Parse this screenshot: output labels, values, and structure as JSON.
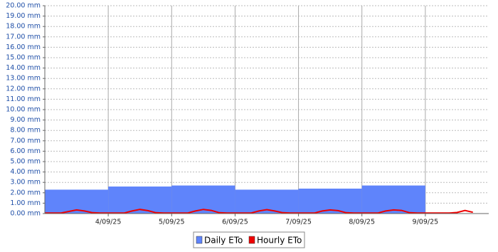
{
  "chart_data": {
    "type": "step-area-line",
    "ylim": [
      0,
      20
    ],
    "yticks": [
      {
        "value": 0,
        "label": "0.00 mm"
      },
      {
        "value": 1,
        "label": "1.00 mm"
      },
      {
        "value": 2,
        "label": "2.00 mm"
      },
      {
        "value": 3,
        "label": "3.00 mm"
      },
      {
        "value": 4,
        "label": "4.00 mm"
      },
      {
        "value": 5,
        "label": "5.00 mm"
      },
      {
        "value": 6,
        "label": "6.00 mm"
      },
      {
        "value": 7,
        "label": "7.00 mm"
      },
      {
        "value": 8,
        "label": "8.00 mm"
      },
      {
        "value": 9,
        "label": "9.00 mm"
      },
      {
        "value": 10,
        "label": "10.00 mm"
      },
      {
        "value": 11,
        "label": "11.00 mm"
      },
      {
        "value": 12,
        "label": "12.00 mm"
      },
      {
        "value": 13,
        "label": "13.00 mm"
      },
      {
        "value": 14,
        "label": "14.00 mm"
      },
      {
        "value": 15,
        "label": "15.00 mm"
      },
      {
        "value": 16,
        "label": "16.00 mm"
      },
      {
        "value": 17,
        "label": "17.00 mm"
      },
      {
        "value": 18,
        "label": "18.00 mm"
      },
      {
        "value": 19,
        "label": "19.00 mm"
      },
      {
        "value": 20,
        "label": "20.00 mm"
      }
    ],
    "xlim": [
      0,
      7
    ],
    "xticks": [
      {
        "value": 1,
        "label": "4/09/25"
      },
      {
        "value": 2,
        "label": "5/09/25"
      },
      {
        "value": 3,
        "label": "6/09/25"
      },
      {
        "value": 4,
        "label": "7/09/25"
      },
      {
        "value": 5,
        "label": "8/09/25"
      },
      {
        "value": 6,
        "label": "9/09/25"
      }
    ],
    "grid": true,
    "series": [
      {
        "name": "Daily ETo",
        "color": "#5f84fb",
        "kind": "step",
        "x": [
          0,
          1,
          2,
          3,
          4,
          5
        ],
        "values": [
          2.3,
          2.6,
          2.7,
          2.3,
          2.4,
          2.7
        ]
      },
      {
        "name": "Hourly ETo",
        "color": "#ee0000",
        "kind": "line",
        "x": [
          0,
          0.125,
          0.25,
          0.375,
          0.5,
          0.625,
          0.75,
          0.875,
          1,
          1.125,
          1.25,
          1.375,
          1.5,
          1.625,
          1.75,
          1.875,
          2,
          2.125,
          2.25,
          2.375,
          2.5,
          2.625,
          2.75,
          2.875,
          3,
          3.125,
          3.25,
          3.375,
          3.5,
          3.625,
          3.75,
          3.875,
          4,
          4.125,
          4.25,
          4.375,
          4.5,
          4.625,
          4.75,
          4.875,
          5,
          5.125,
          5.25,
          5.375,
          5.5,
          5.625,
          5.75,
          5.875,
          6,
          6.125,
          6.25,
          6.375,
          6.5,
          6.625,
          6.75
        ],
        "values": [
          0.05,
          0.05,
          0.05,
          0.2,
          0.35,
          0.25,
          0.08,
          0.05,
          0.05,
          0.05,
          0.05,
          0.25,
          0.4,
          0.28,
          0.08,
          0.05,
          0.05,
          0.05,
          0.05,
          0.25,
          0.4,
          0.3,
          0.08,
          0.05,
          0.05,
          0.05,
          0.05,
          0.25,
          0.38,
          0.25,
          0.08,
          0.05,
          0.05,
          0.05,
          0.05,
          0.25,
          0.35,
          0.28,
          0.08,
          0.05,
          0.05,
          0.05,
          0.05,
          0.25,
          0.35,
          0.3,
          0.08,
          0.05,
          0.05,
          0.05,
          0.05,
          0.05,
          0.1,
          0.3,
          0.12
        ]
      }
    ]
  }
}
